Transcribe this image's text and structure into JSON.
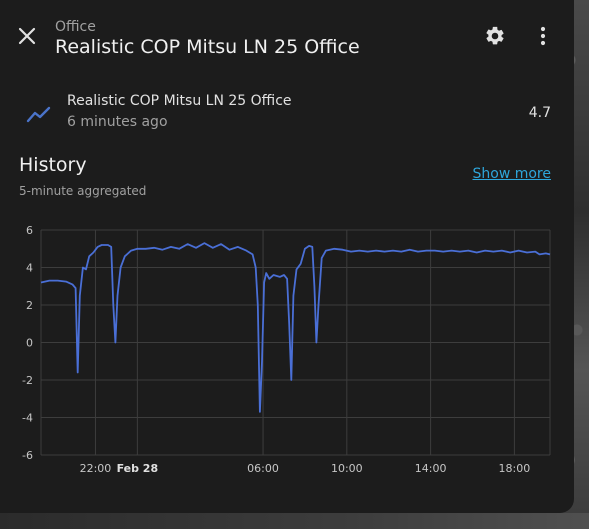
{
  "dialog": {
    "subtitle": "Office",
    "title": "Realistic COP Mitsu LN 25 Office",
    "close_icon": "close-icon",
    "settings_icon": "gear-icon",
    "menu_icon": "more-vertical-icon"
  },
  "entity": {
    "icon": "chart-line-icon",
    "name": "Realistic COP Mitsu LN 25 Office",
    "last_changed": "6 minutes ago",
    "state": "4.7"
  },
  "history": {
    "title": "History",
    "subtitle": "5-minute aggregated",
    "show_more": "Show more"
  },
  "colors": {
    "line": "#4a6fd6",
    "link": "#2ea6db"
  },
  "chart_data": {
    "type": "line",
    "ylim": [
      -6,
      6
    ],
    "y_ticks": [
      "6",
      "4",
      "2",
      "0",
      "-2",
      "-4",
      "-6"
    ],
    "x_ticks": [
      {
        "label": "22:00",
        "t": 22,
        "bold": false
      },
      {
        "label": "Feb 28",
        "t": 24,
        "bold": true
      },
      {
        "label": "06:00",
        "t": 30,
        "bold": false
      },
      {
        "label": "10:00",
        "t": 34,
        "bold": false
      },
      {
        "label": "14:00",
        "t": 38,
        "bold": false
      },
      {
        "label": "18:00",
        "t": 42,
        "bold": false
      }
    ],
    "x_range": [
      19.4,
      43.7
    ],
    "series": [
      {
        "points": [
          [
            19.4,
            3.2
          ],
          [
            19.8,
            3.3
          ],
          [
            20.2,
            3.3
          ],
          [
            20.6,
            3.25
          ],
          [
            20.9,
            3.1
          ],
          [
            21.05,
            2.9
          ],
          [
            21.15,
            -1.6
          ],
          [
            21.25,
            2.5
          ],
          [
            21.4,
            4.0
          ],
          [
            21.55,
            3.9
          ],
          [
            21.7,
            4.6
          ],
          [
            21.9,
            4.8
          ],
          [
            22.1,
            5.1
          ],
          [
            22.3,
            5.2
          ],
          [
            22.6,
            5.2
          ],
          [
            22.75,
            5.1
          ],
          [
            22.85,
            2.0
          ],
          [
            22.95,
            0.0
          ],
          [
            23.05,
            2.5
          ],
          [
            23.2,
            4.0
          ],
          [
            23.4,
            4.6
          ],
          [
            23.7,
            4.9
          ],
          [
            24.0,
            5.0
          ],
          [
            24.4,
            5.0
          ],
          [
            24.8,
            5.05
          ],
          [
            25.2,
            4.95
          ],
          [
            25.6,
            5.1
          ],
          [
            26.0,
            5.0
          ],
          [
            26.4,
            5.25
          ],
          [
            26.8,
            5.05
          ],
          [
            27.2,
            5.3
          ],
          [
            27.6,
            5.05
          ],
          [
            28.0,
            5.25
          ],
          [
            28.4,
            4.95
          ],
          [
            28.8,
            5.1
          ],
          [
            29.2,
            4.9
          ],
          [
            29.5,
            4.7
          ],
          [
            29.65,
            4.0
          ],
          [
            29.75,
            2.0
          ],
          [
            29.85,
            -3.7
          ],
          [
            29.95,
            -1.0
          ],
          [
            30.05,
            3.2
          ],
          [
            30.15,
            3.7
          ],
          [
            30.3,
            3.4
          ],
          [
            30.5,
            3.6
          ],
          [
            30.8,
            3.5
          ],
          [
            31.0,
            3.6
          ],
          [
            31.15,
            3.4
          ],
          [
            31.25,
            1.0
          ],
          [
            31.35,
            -2.0
          ],
          [
            31.45,
            2.5
          ],
          [
            31.6,
            3.9
          ],
          [
            31.8,
            4.2
          ],
          [
            32.0,
            5.0
          ],
          [
            32.2,
            5.15
          ],
          [
            32.35,
            5.1
          ],
          [
            32.45,
            3.0
          ],
          [
            32.55,
            0.0
          ],
          [
            32.65,
            2.0
          ],
          [
            32.8,
            4.5
          ],
          [
            33.0,
            4.9
          ],
          [
            33.4,
            5.0
          ],
          [
            33.8,
            4.95
          ],
          [
            34.2,
            4.85
          ],
          [
            34.6,
            4.9
          ],
          [
            35.0,
            4.85
          ],
          [
            35.4,
            4.9
          ],
          [
            35.8,
            4.85
          ],
          [
            36.2,
            4.9
          ],
          [
            36.6,
            4.85
          ],
          [
            37.0,
            4.95
          ],
          [
            37.4,
            4.85
          ],
          [
            37.8,
            4.9
          ],
          [
            38.2,
            4.9
          ],
          [
            38.6,
            4.85
          ],
          [
            39.0,
            4.9
          ],
          [
            39.4,
            4.85
          ],
          [
            39.8,
            4.9
          ],
          [
            40.2,
            4.8
          ],
          [
            40.6,
            4.9
          ],
          [
            41.0,
            4.85
          ],
          [
            41.4,
            4.9
          ],
          [
            41.8,
            4.8
          ],
          [
            42.2,
            4.9
          ],
          [
            42.6,
            4.8
          ],
          [
            43.0,
            4.85
          ],
          [
            43.2,
            4.7
          ],
          [
            43.5,
            4.75
          ],
          [
            43.7,
            4.7
          ]
        ]
      }
    ]
  }
}
